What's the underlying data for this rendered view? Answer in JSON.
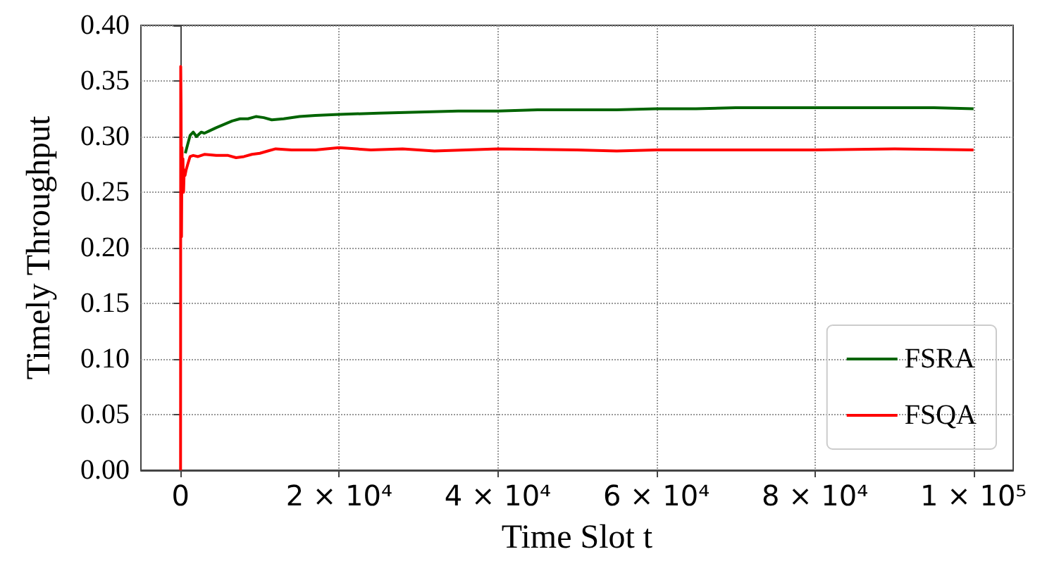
{
  "chart_data": {
    "type": "line",
    "xlabel": "Time Slot t",
    "ylabel": "Timely Throughput",
    "xlim": [
      -5000,
      105000
    ],
    "ylim": [
      0,
      0.4
    ],
    "xticks": [
      0,
      {
        "value": 20000,
        "label": "2 × 10⁴"
      },
      {
        "value": 40000,
        "label": "4 × 10⁴"
      },
      {
        "value": 60000,
        "label": "6 × 10⁴"
      },
      {
        "value": 80000,
        "label": "8 × 10⁴"
      },
      {
        "value": 100000,
        "label": "1 × 10⁵"
      }
    ],
    "yticks": [
      {
        "value": 0,
        "label": "0.00"
      },
      {
        "value": 0.05,
        "label": "0.05"
      },
      {
        "value": 0.1,
        "label": "0.10"
      },
      {
        "value": 0.15,
        "label": "0.15"
      },
      {
        "value": 0.2,
        "label": "0.20"
      },
      {
        "value": 0.25,
        "label": "0.25"
      },
      {
        "value": 0.3,
        "label": "0.30"
      },
      {
        "value": 0.35,
        "label": "0.35"
      },
      {
        "value": 0.4,
        "label": "0.40"
      }
    ],
    "grid": true,
    "legend": "bottom right",
    "line_style": "solid",
    "marker": "none",
    "series": [
      {
        "name": "FSRA",
        "color": "#006400",
        "x": [
          600,
          900,
          1200,
          1600,
          2000,
          2600,
          3000,
          3600,
          4500,
          5500,
          6500,
          7500,
          8500,
          9500,
          10500,
          11500,
          13000,
          15000,
          17000,
          20000,
          25000,
          30000,
          35000,
          40000,
          45000,
          50000,
          55000,
          60000,
          65000,
          70000,
          75000,
          80000,
          85000,
          90000,
          95000,
          100000
        ],
        "values": [
          0.285,
          0.293,
          0.301,
          0.304,
          0.3,
          0.304,
          0.303,
          0.305,
          0.308,
          0.311,
          0.314,
          0.316,
          0.316,
          0.318,
          0.317,
          0.315,
          0.316,
          0.318,
          0.319,
          0.32,
          0.321,
          0.322,
          0.323,
          0.323,
          0.324,
          0.324,
          0.324,
          0.325,
          0.325,
          0.326,
          0.326,
          0.326,
          0.326,
          0.326,
          0.326,
          0.325
        ]
      },
      {
        "name": "FSQA",
        "color": "#ff0000",
        "x": [
          0,
          20,
          60,
          120,
          180,
          240,
          300,
          380,
          460,
          560,
          700,
          900,
          1200,
          1600,
          2200,
          3000,
          4500,
          6000,
          7000,
          8000,
          9000,
          10000,
          11000,
          12000,
          14000,
          17000,
          20000,
          24000,
          28000,
          32000,
          36000,
          40000,
          50000,
          55000,
          60000,
          70000,
          80000,
          90000,
          100000
        ],
        "values": [
          0,
          0.363,
          0.33,
          0.21,
          0.29,
          0.26,
          0.28,
          0.25,
          0.27,
          0.265,
          0.27,
          0.275,
          0.282,
          0.283,
          0.282,
          0.284,
          0.283,
          0.283,
          0.281,
          0.282,
          0.284,
          0.285,
          0.287,
          0.289,
          0.288,
          0.288,
          0.29,
          0.288,
          0.289,
          0.287,
          0.288,
          0.289,
          0.288,
          0.287,
          0.288,
          0.288,
          0.288,
          0.289,
          0.288
        ]
      }
    ]
  }
}
